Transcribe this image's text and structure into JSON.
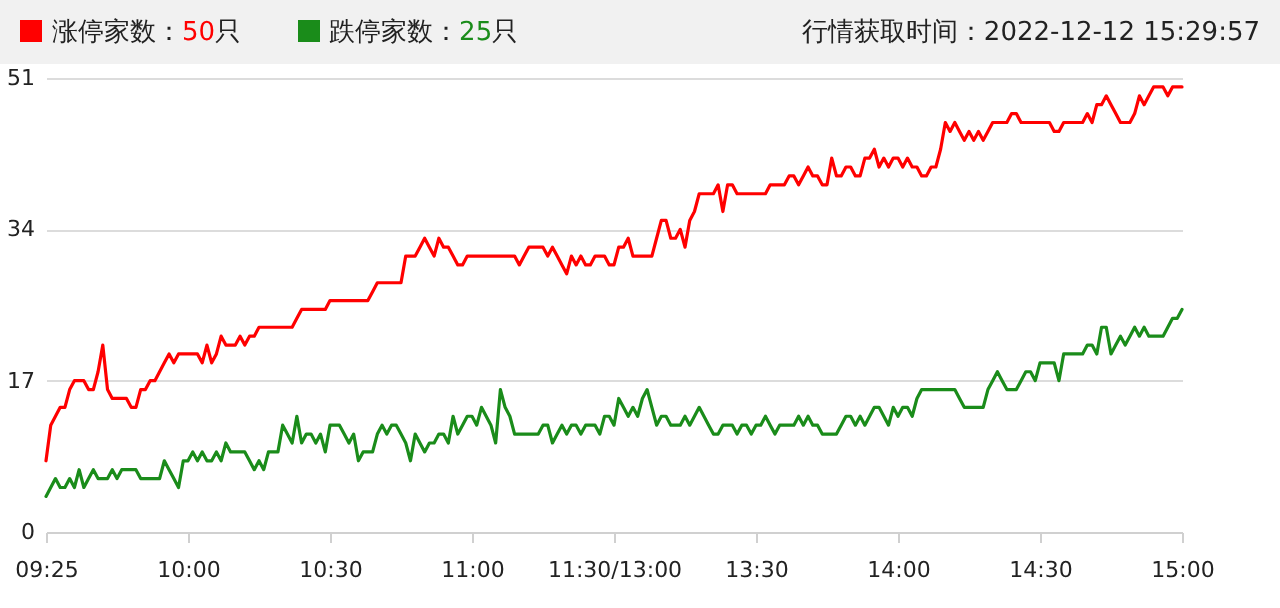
{
  "chart_data": {
    "type": "line",
    "legend": "top left",
    "grid": "y",
    "annotations": [
      "行情获取时间：2022-12-12 15:29:57"
    ],
    "categories": [
      "09:25",
      null,
      null,
      null,
      null,
      null,
      null,
      null,
      null,
      null,
      null,
      null,
      null,
      null,
      null,
      null,
      null,
      null,
      null,
      null,
      null,
      null,
      null,
      null,
      null,
      null,
      null,
      null,
      null,
      null,
      "10:00",
      null,
      null,
      null,
      null,
      null,
      null,
      null,
      null,
      null,
      null,
      null,
      null,
      null,
      null,
      null,
      null,
      null,
      null,
      null,
      null,
      null,
      null,
      null,
      null,
      null,
      null,
      null,
      null,
      null,
      "10:30",
      null,
      null,
      null,
      null,
      null,
      null,
      null,
      null,
      null,
      null,
      null,
      null,
      null,
      null,
      null,
      null,
      null,
      null,
      null,
      null,
      null,
      null,
      null,
      null,
      null,
      null,
      null,
      null,
      null,
      "11:00",
      null,
      null,
      null,
      null,
      null,
      null,
      null,
      null,
      null,
      null,
      null,
      null,
      null,
      null,
      null,
      null,
      null,
      null,
      null,
      null,
      null,
      null,
      null,
      null,
      null,
      null,
      null,
      null,
      null,
      "11:30/13:00",
      null,
      null,
      null,
      null,
      null,
      null,
      null,
      null,
      null,
      null,
      null,
      null,
      null,
      null,
      null,
      null,
      null,
      null,
      null,
      null,
      null,
      null,
      null,
      null,
      null,
      null,
      null,
      null,
      null,
      "13:30",
      null,
      null,
      null,
      null,
      null,
      null,
      null,
      null,
      null,
      null,
      null,
      null,
      null,
      null,
      null,
      null,
      null,
      null,
      null,
      null,
      null,
      null,
      null,
      null,
      null,
      null,
      null,
      null,
      null,
      "14:00",
      null,
      null,
      null,
      null,
      null,
      null,
      null,
      null,
      null,
      null,
      null,
      null,
      null,
      null,
      null,
      null,
      null,
      null,
      null,
      null,
      null,
      null,
      null,
      null,
      null,
      null,
      null,
      null,
      null,
      "14:30",
      null,
      null,
      null,
      null,
      null,
      null,
      null,
      null,
      null,
      null,
      null,
      null,
      null,
      null,
      null,
      null,
      null,
      null,
      null,
      null,
      null,
      null,
      null,
      null,
      null,
      null,
      null,
      null,
      null,
      "15:00"
    ],
    "ylim": [
      0,
      51
    ],
    "yticks": [
      0,
      17,
      34,
      51
    ],
    "series": [
      {
        "name": "涨停家数：50只",
        "color": "#ff0000",
        "values": [
          8,
          12,
          13,
          14,
          14,
          16,
          17,
          17,
          17,
          16,
          16,
          18,
          21,
          16,
          15,
          15,
          15,
          15,
          14,
          14,
          16,
          16,
          17,
          17,
          18,
          19,
          20,
          19,
          20,
          20,
          20,
          20,
          20,
          19,
          21,
          19,
          20,
          22,
          21,
          21,
          21,
          22,
          21,
          22,
          22,
          23,
          23,
          23,
          23,
          23,
          23,
          23,
          23,
          24,
          25,
          25,
          25,
          25,
          25,
          25,
          26,
          26,
          26,
          26,
          26,
          26,
          26,
          26,
          26,
          27,
          28,
          28,
          28,
          28,
          28,
          28,
          31,
          31,
          31,
          32,
          33,
          32,
          31,
          33,
          32,
          32,
          31,
          30,
          30,
          31,
          31,
          31,
          31,
          31,
          31,
          31,
          31,
          31,
          31,
          31,
          30,
          31,
          32,
          32,
          32,
          32,
          31,
          32,
          31,
          30,
          29,
          31,
          30,
          31,
          30,
          30,
          31,
          31,
          31,
          30,
          30,
          32,
          32,
          33,
          31,
          31,
          31,
          31,
          31,
          33,
          35,
          35,
          33,
          33,
          34,
          32,
          35,
          36,
          38,
          38,
          38,
          38,
          39,
          36,
          39,
          39,
          38,
          38,
          38,
          38,
          38,
          38,
          38,
          39,
          39,
          39,
          39,
          40,
          40,
          39,
          40,
          41,
          40,
          40,
          39,
          39,
          42,
          40,
          40,
          41,
          41,
          40,
          40,
          42,
          42,
          43,
          41,
          42,
          41,
          42,
          42,
          41,
          42,
          41,
          41,
          40,
          40,
          41,
          41,
          43,
          46,
          45,
          46,
          45,
          44,
          45,
          44,
          45,
          44,
          45,
          46,
          46,
          46,
          46,
          47,
          47,
          46,
          46,
          46,
          46,
          46,
          46,
          46,
          45,
          45,
          46,
          46,
          46,
          46,
          46,
          47,
          46,
          48,
          48,
          49,
          48,
          47,
          46,
          46,
          46,
          47,
          49,
          48,
          49,
          50,
          50,
          50,
          49,
          50,
          50,
          50
        ]
      },
      {
        "name": "跌停家数：25只",
        "color": "#1a8c1a",
        "values": [
          4,
          5,
          6,
          5,
          5,
          6,
          5,
          7,
          5,
          6,
          7,
          6,
          6,
          6,
          7,
          6,
          7,
          7,
          7,
          7,
          6,
          6,
          6,
          6,
          6,
          8,
          7,
          6,
          5,
          8,
          8,
          9,
          8,
          9,
          8,
          8,
          9,
          8,
          10,
          9,
          9,
          9,
          9,
          8,
          7,
          8,
          7,
          9,
          9,
          9,
          12,
          11,
          10,
          13,
          10,
          11,
          11,
          10,
          11,
          9,
          12,
          12,
          12,
          11,
          10,
          11,
          8,
          9,
          9,
          9,
          11,
          12,
          11,
          12,
          12,
          11,
          10,
          8,
          11,
          10,
          9,
          10,
          10,
          11,
          11,
          10,
          13,
          11,
          12,
          13,
          13,
          12,
          14,
          13,
          12,
          10,
          16,
          14,
          13,
          11,
          11,
          11,
          11,
          11,
          11,
          12,
          12,
          10,
          11,
          12,
          11,
          12,
          12,
          11,
          12,
          12,
          12,
          11,
          13,
          13,
          12,
          15,
          14,
          13,
          14,
          13,
          15,
          16,
          14,
          12,
          13,
          13,
          12,
          12,
          12,
          13,
          12,
          13,
          14,
          13,
          12,
          11,
          11,
          12,
          12,
          12,
          11,
          12,
          12,
          11,
          12,
          12,
          13,
          12,
          11,
          12,
          12,
          12,
          12,
          13,
          12,
          13,
          12,
          12,
          11,
          11,
          11,
          11,
          12,
          13,
          13,
          12,
          13,
          12,
          13,
          14,
          14,
          13,
          12,
          14,
          13,
          14,
          14,
          13,
          15,
          16,
          16,
          16,
          16,
          16,
          16,
          16,
          16,
          15,
          14,
          14,
          14,
          14,
          14,
          16,
          17,
          18,
          17,
          16,
          16,
          16,
          17,
          18,
          18,
          17,
          19,
          19,
          19,
          19,
          17,
          20,
          20,
          20,
          20,
          20,
          21,
          21,
          20,
          23,
          23,
          20,
          21,
          22,
          21,
          22,
          23,
          22,
          23,
          22,
          22,
          22,
          22,
          23,
          24,
          24,
          25
        ]
      }
    ]
  }
}
